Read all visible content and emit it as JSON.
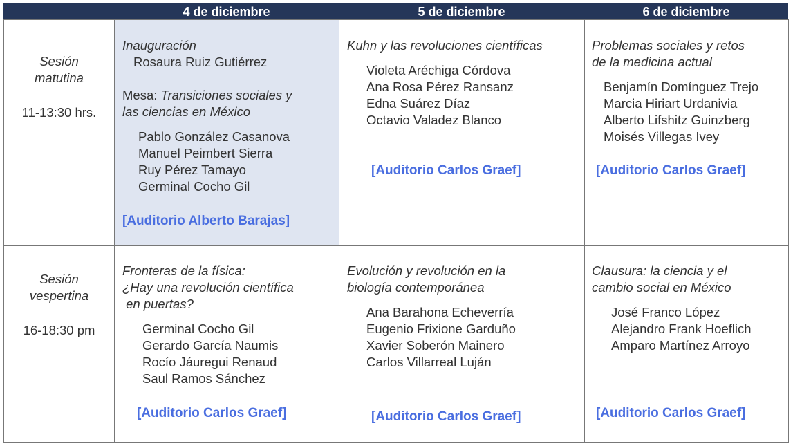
{
  "header": {
    "days": [
      "4 de diciembre",
      "5 de diciembre",
      "6 de diciembre"
    ]
  },
  "sessions": [
    {
      "name_line1": "Sesión",
      "name_line2": "matutina",
      "time": "11-13:30 hrs."
    },
    {
      "name_line1": "Sesión",
      "name_line2": "vespertina",
      "time": "16-18:30 pm"
    }
  ],
  "morning": {
    "day4": {
      "inaug_title": "Inauguración",
      "inaug_speaker": "Rosaura Ruiz Gutiérrez",
      "mesa_prefix": "Mesa: ",
      "mesa_title_1": "Transiciones sociales y",
      "mesa_title_2": "las ciencias en México",
      "speakers": [
        "Pablo González Casanova",
        "Manuel Peimbert Sierra",
        "Ruy Pérez Tamayo",
        "Germinal Cocho Gil"
      ],
      "venue": "[Auditorio Alberto Barajas]"
    },
    "day5": {
      "title": [
        "Kuhn y las revoluciones científicas"
      ],
      "speakers": [
        "Violeta Aréchiga Córdova",
        "Ana Rosa Pérez Ransanz",
        "Edna Suárez Díaz",
        "Octavio Valadez Blanco"
      ],
      "venue": "[Auditorio Carlos Graef]"
    },
    "day6": {
      "title": [
        "Problemas sociales y retos",
        "de la medicina actual"
      ],
      "speakers": [
        "Benjamín Domínguez Trejo",
        "Marcia Hiriart Urdanivia",
        "Alberto Lifshitz Guinzberg",
        "Moisés Villegas Ivey"
      ],
      "venue": "[Auditorio Carlos Graef]"
    }
  },
  "afternoon": {
    "day4": {
      "title": [
        "Fronteras de la física:",
        "¿Hay una revolución científica",
        " en puertas?"
      ],
      "speakers": [
        "Germinal Cocho Gil",
        "Gerardo García Naumis",
        "Rocío Jáuregui Renaud",
        "Saul Ramos Sánchez"
      ],
      "venue": "[Auditorio Carlos Graef]"
    },
    "day5": {
      "title": [
        "Evolución y revolución en la",
        "biología contemporánea"
      ],
      "speakers": [
        "Ana Barahona Echeverría",
        "Eugenio Frixione Garduño",
        "Xavier Soberón Mainero",
        "Carlos Villarreal Luján"
      ],
      "venue": "[Auditorio Carlos Graef]"
    },
    "day6": {
      "title": [
        "Clausura: la ciencia y el",
        "cambio social en México"
      ],
      "speakers": [
        "José Franco López",
        "Alejandro Frank Hoeflich",
        "Amparo Martínez Arroyo"
      ],
      "venue": "[Auditorio Carlos Graef]"
    }
  },
  "colors": {
    "header_bg": "#253659",
    "highlight_bg": "#dfe5f1",
    "venue_link": "#4a6ee0"
  }
}
